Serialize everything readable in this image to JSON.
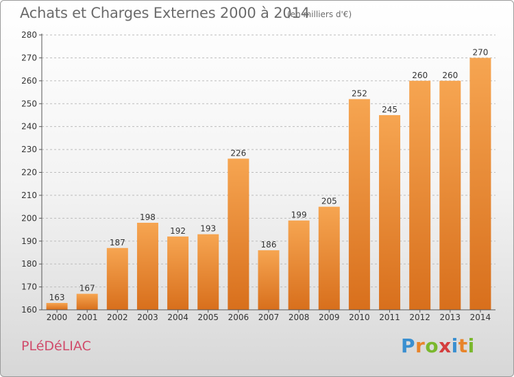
{
  "title": "Achats et Charges Externes 2000 à 2014",
  "subtitle": "(en milliers d'€)",
  "commune": "PLéDéLIAC",
  "brand": {
    "letters": [
      "P",
      "r",
      "o",
      "x",
      "i",
      "t",
      "i"
    ],
    "colors": [
      "#3a8fd0",
      "#e8842a",
      "#7ab82d",
      "#d43d3d",
      "#3a8fd0",
      "#e8842a",
      "#7ab82d"
    ]
  },
  "colors": {
    "bar_top": "#f6a551",
    "bar_bottom": "#d86f1c",
    "grid": "#bbbbbb",
    "axis_text": "#333333"
  },
  "chart_data": {
    "type": "bar",
    "categories": [
      "2000",
      "2001",
      "2002",
      "2003",
      "2004",
      "2005",
      "2006",
      "2007",
      "2008",
      "2009",
      "2010",
      "2011",
      "2012",
      "2013",
      "2014"
    ],
    "values": [
      163,
      167,
      187,
      198,
      192,
      193,
      226,
      186,
      199,
      205,
      252,
      245,
      260,
      260,
      270
    ],
    "ylim": [
      160,
      280
    ],
    "yticks": [
      160,
      170,
      180,
      190,
      200,
      210,
      220,
      230,
      240,
      250,
      260,
      270,
      280
    ],
    "grid": true
  }
}
